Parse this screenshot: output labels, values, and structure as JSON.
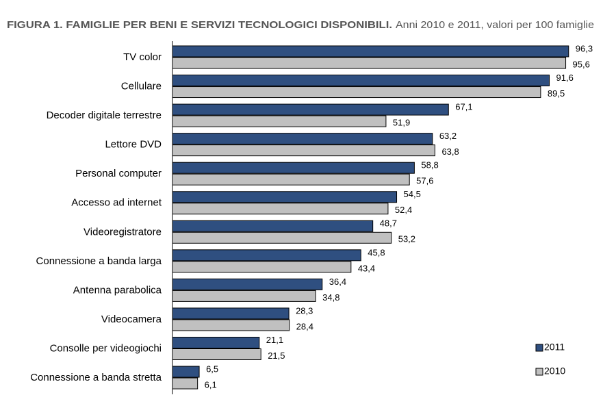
{
  "chart_data": {
    "type": "hbar",
    "title": "FIGURA 1. FAMIGLIE PER BENI E SERVIZI TECNOLOGICI DISPONIBILI.",
    "subtitle": "Anni 2010 e 2011, valori per 100 famiglie",
    "categories": [
      "TV color",
      "Cellulare",
      "Decoder digitale terrestre",
      "Lettore DVD",
      "Personal computer",
      "Accesso ad internet",
      "Videoregistratore",
      "Connessione a banda larga",
      "Antenna parabolica",
      "Videocamera",
      "Consolle per videogiochi",
      "Connessione a banda stretta"
    ],
    "series": [
      {
        "name": "2011",
        "color": "#2f4f80",
        "values": [
          96.3,
          91.6,
          67.1,
          63.2,
          58.8,
          54.5,
          48.7,
          45.8,
          36.4,
          28.3,
          21.1,
          6.5
        ],
        "value_labels": [
          "96,3",
          "91,6",
          "67,1",
          "63,2",
          "58,8",
          "54,5",
          "48,7",
          "45,8",
          "36,4",
          "28,3",
          "21,1",
          "6,5"
        ]
      },
      {
        "name": "2010",
        "color": "#c0c0c0",
        "values": [
          95.6,
          89.5,
          51.9,
          63.8,
          57.6,
          52.4,
          53.2,
          43.4,
          34.8,
          28.4,
          21.5,
          6.1
        ],
        "value_labels": [
          "95,6",
          "89,5",
          "51,9",
          "63,8",
          "57,6",
          "52,4",
          "53,2",
          "43,4",
          "34,8",
          "28,4",
          "21,5",
          "6,1"
        ]
      }
    ],
    "legend": "bottom-right"
  }
}
